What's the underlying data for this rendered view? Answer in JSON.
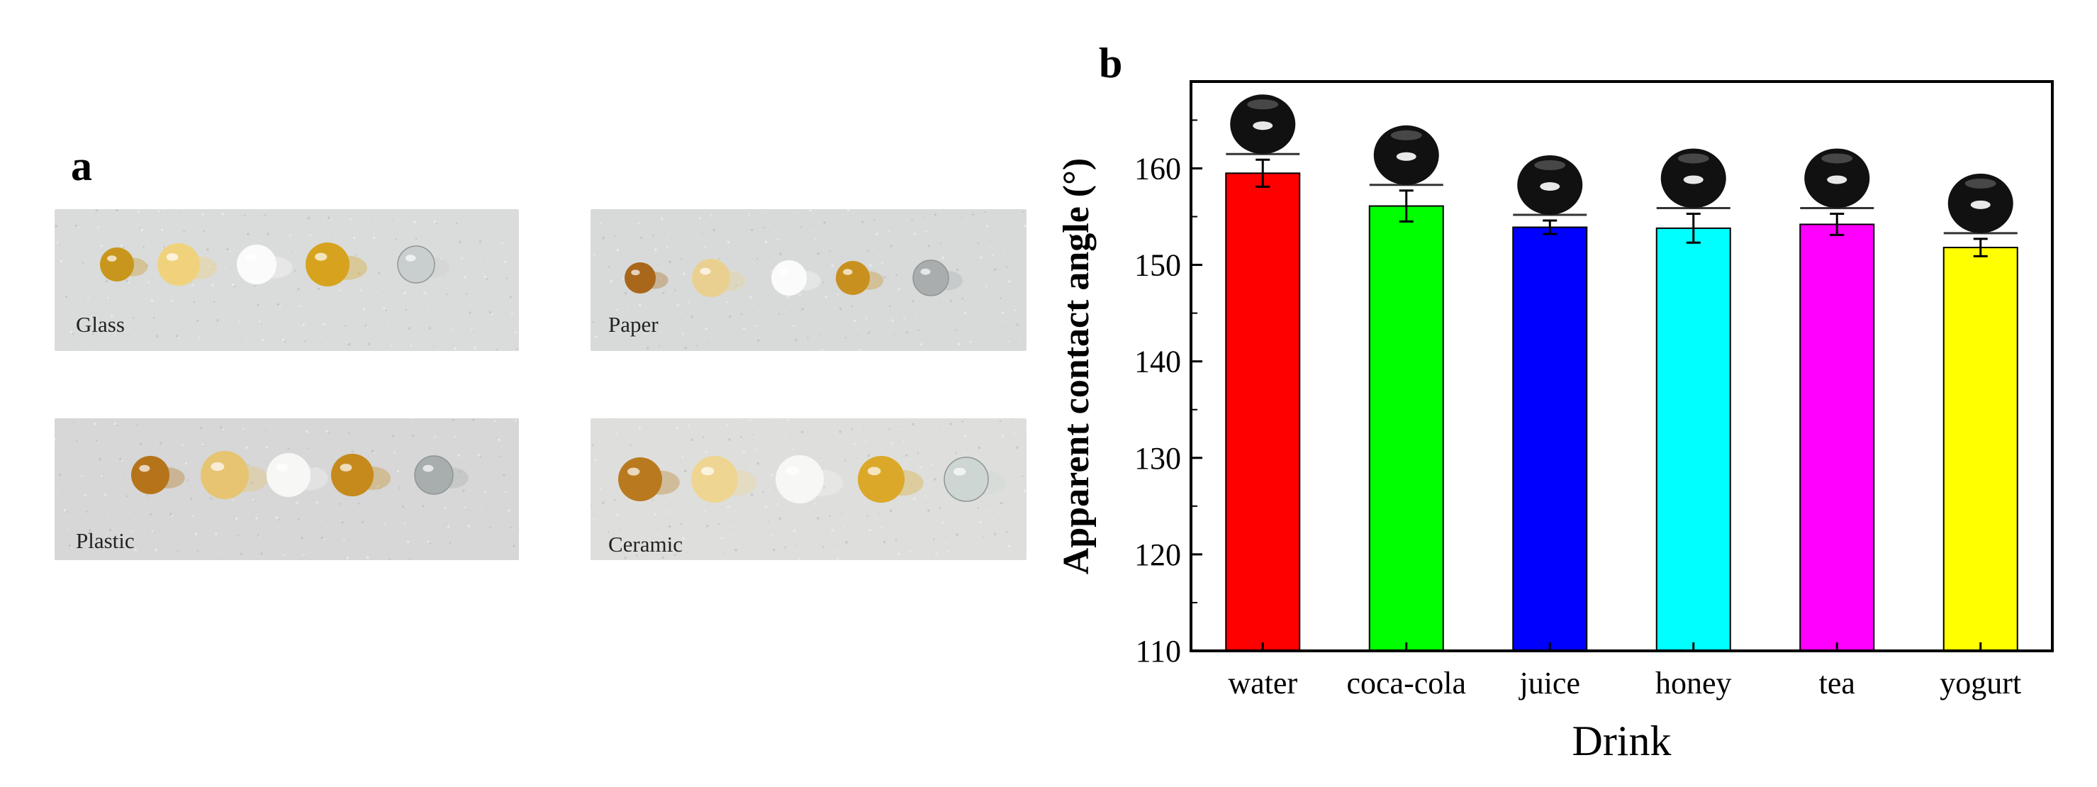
{
  "panel_a": {
    "label": "a",
    "photos": [
      {
        "substrate": "Glass",
        "background": "#dadcdb",
        "drops": [
          {
            "color": "#c9961d",
            "kind": "amber"
          },
          {
            "color": "#f0d27c",
            "kind": "pale"
          },
          {
            "color": "#fbfbfb",
            "kind": "white"
          },
          {
            "color": "#d7a31e",
            "kind": "amber"
          },
          {
            "color": "#c9cfcf",
            "kind": "clear"
          }
        ]
      },
      {
        "substrate": "Paper",
        "background": "#d8dad9",
        "drops": [
          {
            "color": "#a9671b",
            "kind": "amber"
          },
          {
            "color": "#ead090",
            "kind": "pale"
          },
          {
            "color": "#fbfbfb",
            "kind": "white"
          },
          {
            "color": "#c8901e",
            "kind": "amber"
          },
          {
            "color": "#a9adae",
            "kind": "clear"
          }
        ]
      },
      {
        "substrate": "Plastic",
        "background": "#d6d7d6",
        "drops": [
          {
            "color": "#b5741a",
            "kind": "amber"
          },
          {
            "color": "#e7c471",
            "kind": "pale"
          },
          {
            "color": "#f7f7f6",
            "kind": "white"
          },
          {
            "color": "#c68a1c",
            "kind": "amber"
          },
          {
            "color": "#a8adad",
            "kind": "clear"
          }
        ]
      },
      {
        "substrate": "Ceramic",
        "background": "#dedfdc",
        "drops": [
          {
            "color": "#b97a1f",
            "kind": "amber"
          },
          {
            "color": "#efd592",
            "kind": "pale"
          },
          {
            "color": "#f7f7f6",
            "kind": "white"
          },
          {
            "color": "#dba82a",
            "kind": "amber"
          },
          {
            "color": "#cdd6d3",
            "kind": "clear"
          }
        ]
      }
    ]
  },
  "panel_b": {
    "label": "b"
  },
  "chart_data": {
    "type": "bar",
    "title": "",
    "xlabel": "Drink",
    "ylabel": "Apparent contact angle (°)",
    "ylim": [
      110,
      169
    ],
    "yticks": [
      110,
      120,
      130,
      140,
      150,
      160
    ],
    "categories": [
      "water",
      "coca-cola",
      "juice",
      "honey",
      "tea",
      "yogurt"
    ],
    "values": [
      159.5,
      156.1,
      153.9,
      153.8,
      154.2,
      151.8
    ],
    "errors": [
      1.4,
      1.6,
      0.7,
      1.5,
      1.1,
      0.9
    ],
    "colors": [
      "#ff0000",
      "#00ff00",
      "#0000ff",
      "#00ffff",
      "#ff00ff",
      "#ffff00"
    ],
    "insets": "droplet images above each bar"
  }
}
